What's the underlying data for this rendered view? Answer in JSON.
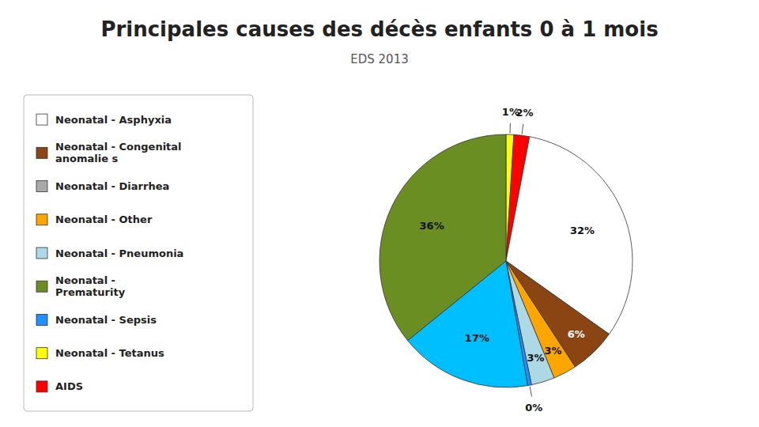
{
  "chart_data": {
    "type": "pie",
    "title": "Principales causes des décès enfants 0 à 1 mois",
    "subtitle": "EDS 2013",
    "values": [
      1,
      2,
      32,
      6,
      3,
      3,
      0.5,
      17,
      36
    ],
    "value_labels": [
      "1%",
      "2%",
      "32%",
      "6%",
      "3%",
      "3%",
      "0%",
      "17%",
      "36%"
    ],
    "colors": [
      "#FFFF00",
      "#FF0000",
      "#FFFFFF",
      "#8B4513",
      "#FFA500",
      "#ADD8E6",
      "#1E90FF",
      "#00BFFF",
      "#6B8E23"
    ],
    "data_labels": true,
    "legend": "left",
    "legend_labels": [
      "Neonatal - Asphyxia",
      "Neonatal - Congenital\nanomalie s",
      "Neonatal - Diarrhea",
      "Neonatal - Other",
      "Neonatal - Pneumonia",
      "Neonatal -\nPrematurity",
      "Neonatal - Sepsis",
      "Neonatal - Tetanus",
      "AIDS"
    ],
    "legend_colors": [
      "#FFFFFF",
      "#8B4513",
      "#A9A9A9",
      "#FFA500",
      "#ADD8E6",
      "#6B8E23",
      "#1E90FF",
      "#FFFF00",
      "#FF0000"
    ]
  }
}
